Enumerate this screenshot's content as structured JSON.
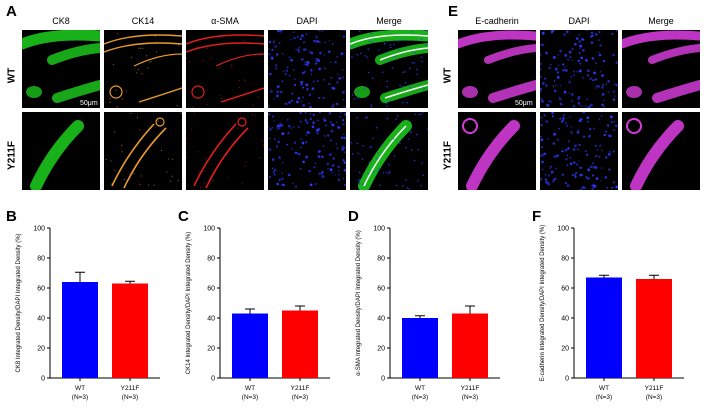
{
  "panels": {
    "A": "A",
    "B": "B",
    "C": "C",
    "D": "D",
    "E": "E",
    "F": "F"
  },
  "colors": {
    "wt": "#0000ff",
    "y211f": "#ff0000",
    "ck8": "#1cc41c",
    "ck14": "#e89a2a",
    "sma": "#e21e1e",
    "dapi": "#2a3cff",
    "ecad": "#d43bd8"
  },
  "panelA": {
    "columns": [
      "CK8",
      "CK14",
      "α-SMA",
      "DAPI",
      "Merge"
    ],
    "rows": [
      "WT",
      "Y211F"
    ],
    "scale": "50μm"
  },
  "panelE": {
    "columns": [
      "E-cadherin",
      "DAPI",
      "Merge"
    ],
    "rows": [
      "WT",
      "Y211F"
    ],
    "scale": "50μm"
  },
  "chart_data": [
    {
      "type": "bar",
      "panel": "B",
      "categories": [
        "WT",
        "Y211F"
      ],
      "sublabels": [
        "(N=3)",
        "(N=3)"
      ],
      "values": [
        64,
        63
      ],
      "errors": [
        6.5,
        1.5
      ],
      "ylabel": "CK8 Integrated Density/DAPI Integrated Density (%)",
      "ylim": [
        0,
        100
      ],
      "ticks": [
        0,
        20,
        40,
        60,
        80,
        100
      ]
    },
    {
      "type": "bar",
      "panel": "C",
      "categories": [
        "WT",
        "Y211F"
      ],
      "sublabels": [
        "(N=3)",
        "(N=3)"
      ],
      "values": [
        43,
        45
      ],
      "errors": [
        3,
        3
      ],
      "ylabel": "CK14 Integrated Density/DAPI Integrated Density (%)",
      "ylim": [
        0,
        100
      ],
      "ticks": [
        0,
        20,
        40,
        60,
        80,
        100
      ]
    },
    {
      "type": "bar",
      "panel": "D",
      "categories": [
        "WT",
        "Y211F"
      ],
      "sublabels": [
        "(N=3)",
        "(N=3)"
      ],
      "values": [
        40,
        43
      ],
      "errors": [
        1.5,
        5
      ],
      "ylabel": "α-SMA Integrated Density/DAPI Integrated Density (%)",
      "ylim": [
        0,
        100
      ],
      "ticks": [
        0,
        20,
        40,
        60,
        80,
        100
      ]
    },
    {
      "type": "bar",
      "panel": "F",
      "categories": [
        "WT",
        "Y211F"
      ],
      "sublabels": [
        "(N=3)",
        "(N=3)"
      ],
      "values": [
        67,
        66
      ],
      "errors": [
        1.5,
        2.5
      ],
      "ylabel": "E-cadherin Integrated Density/DAPI Integrated Density (%)",
      "ylim": [
        0,
        100
      ],
      "ticks": [
        0,
        20,
        40,
        60,
        80,
        100
      ]
    }
  ]
}
